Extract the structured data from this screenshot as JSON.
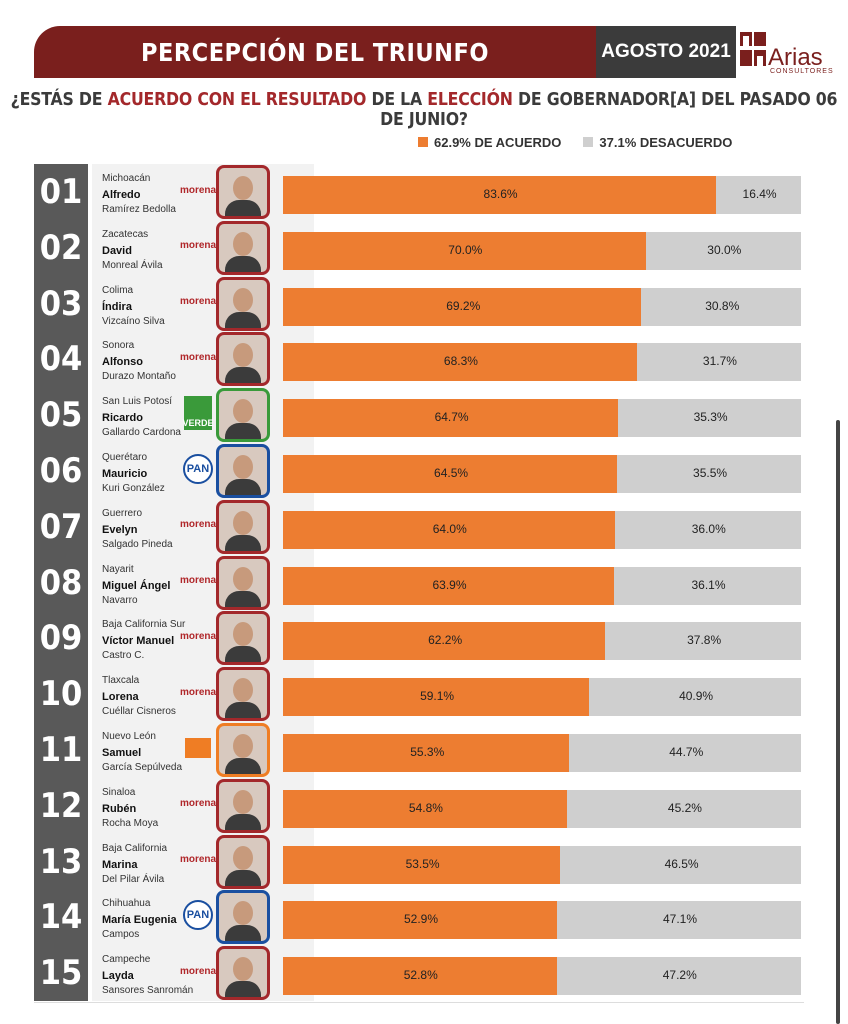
{
  "header": {
    "title": "PERCEPCIÓN DEL TRIUNFO",
    "date": "AGOSTO 2021",
    "logo_text": "Arias",
    "logo_sub": "CONSULTORES"
  },
  "question": {
    "p1": "¿ESTÁS DE ",
    "h1": "ACUERDO CON EL RESULTADO",
    "p2": " DE LA ",
    "h2": "ELECCIÓN",
    "p3": " DE GOBERNADOR[A] DEL PASADO 06 DE JUNIO?"
  },
  "colors": {
    "agree": "#ed7d31",
    "disagree": "#cfcfcf",
    "brand": "#7a1f1d",
    "rank_bg": "#595959"
  },
  "chart_data": {
    "type": "bar",
    "orientation": "horizontal",
    "stacked": true,
    "title": "¿ESTÁS DE ACUERDO CON EL RESULTADO DE LA ELECCIÓN DE GOBERNADOR[A] DEL PASADO 06 DE JUNIO?",
    "legend": {
      "position": "top",
      "agree": "62.9% DE ACUERDO",
      "disagree": "37.1% DESACUERDO"
    },
    "xlim": [
      0,
      100
    ],
    "rows": [
      {
        "rank": "01",
        "state": "Michoacán",
        "first": "Alfredo",
        "last": "Ramírez Bedolla",
        "party": "morena",
        "agree": 83.6,
        "disagree": 16.4,
        "agree_label": "83.6%",
        "disagree_label": "16.4%"
      },
      {
        "rank": "02",
        "state": "Zacatecas",
        "first": "David",
        "last": "Monreal Ávila",
        "party": "morena",
        "agree": 70.0,
        "disagree": 30.0,
        "agree_label": "70.0%",
        "disagree_label": "30.0%"
      },
      {
        "rank": "03",
        "state": "Colima",
        "first": "Índira",
        "last": "Vizcaíno Silva",
        "party": "morena",
        "agree": 69.2,
        "disagree": 30.8,
        "agree_label": "69.2%",
        "disagree_label": "30.8%"
      },
      {
        "rank": "04",
        "state": "Sonora",
        "first": "Alfonso",
        "last": "Durazo Montaño",
        "party": "morena",
        "agree": 68.3,
        "disagree": 31.7,
        "agree_label": "68.3%",
        "disagree_label": "31.7%"
      },
      {
        "rank": "05",
        "state": "San Luis Potosí",
        "first": "Ricardo",
        "last": "Gallardo Cardona",
        "party": "verde",
        "agree": 64.7,
        "disagree": 35.3,
        "agree_label": "64.7%",
        "disagree_label": "35.3%"
      },
      {
        "rank": "06",
        "state": "Querétaro",
        "first": "Mauricio",
        "last": "Kuri González",
        "party": "pan",
        "agree": 64.5,
        "disagree": 35.5,
        "agree_label": "64.5%",
        "disagree_label": "35.5%"
      },
      {
        "rank": "07",
        "state": "Guerrero",
        "first": "Evelyn",
        "last": "Salgado Pineda",
        "party": "morena",
        "agree": 64.0,
        "disagree": 36.0,
        "agree_label": "64.0%",
        "disagree_label": "36.0%"
      },
      {
        "rank": "08",
        "state": "Nayarit",
        "first": "Miguel Ángel",
        "last": "Navarro",
        "party": "morena",
        "agree": 63.9,
        "disagree": 36.1,
        "agree_label": "63.9%",
        "disagree_label": "36.1%"
      },
      {
        "rank": "09",
        "state": "Baja California Sur",
        "first": "Víctor Manuel",
        "last": "Castro C.",
        "party": "morena",
        "agree": 62.2,
        "disagree": 37.8,
        "agree_label": "62.2%",
        "disagree_label": "37.8%"
      },
      {
        "rank": "10",
        "state": "Tlaxcala",
        "first": "Lorena",
        "last": "Cuéllar Cisneros",
        "party": "morena",
        "agree": 59.1,
        "disagree": 40.9,
        "agree_label": "59.1%",
        "disagree_label": "40.9%"
      },
      {
        "rank": "11",
        "state": "Nuevo León",
        "first": "Samuel",
        "last": "García Sepúlveda",
        "party": "mc",
        "agree": 55.3,
        "disagree": 44.7,
        "agree_label": "55.3%",
        "disagree_label": "44.7%"
      },
      {
        "rank": "12",
        "state": "Sinaloa",
        "first": "Rubén",
        "last": "Rocha Moya",
        "party": "morena",
        "agree": 54.8,
        "disagree": 45.2,
        "agree_label": "54.8%",
        "disagree_label": "45.2%"
      },
      {
        "rank": "13",
        "state": "Baja California",
        "first": "Marina",
        "last": "Del Pilar Ávila",
        "party": "morena",
        "agree": 53.5,
        "disagree": 46.5,
        "agree_label": "53.5%",
        "disagree_label": "46.5%"
      },
      {
        "rank": "14",
        "state": "Chihuahua",
        "first": "María Eugenia",
        "last": "Campos",
        "party": "pan",
        "agree": 52.9,
        "disagree": 47.1,
        "agree_label": "52.9%",
        "disagree_label": "47.1%"
      },
      {
        "rank": "15",
        "state": "Campeche",
        "first": "Layda",
        "last": "Sansores Sanromán",
        "party": "morena",
        "agree": 52.8,
        "disagree": 47.2,
        "agree_label": "52.8%",
        "disagree_label": "47.2%"
      }
    ]
  },
  "party_labels": {
    "morena": "morena",
    "pan": "PAN",
    "verde": "VERDE",
    "mc": ""
  }
}
